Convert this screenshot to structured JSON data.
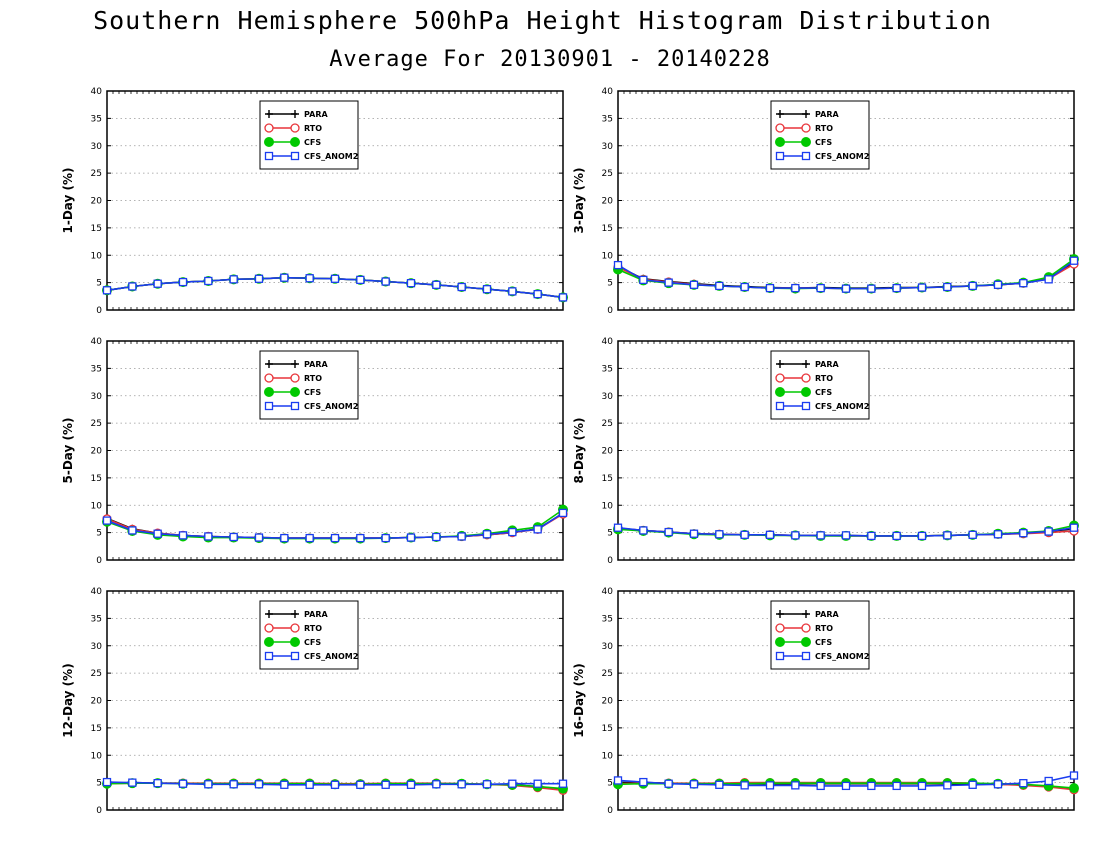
{
  "header": {
    "title": "Southern Hemisphere 500hPa Height Histogram Distribution",
    "subtitle": "Average For 20130901 - 20140228"
  },
  "chart_data": {
    "type": "line",
    "legend_position": "top-left inside each panel",
    "grid": "horizontal dotted lines",
    "series_styles": [
      {
        "name": "PARA",
        "color": "#000000",
        "marker": "plus"
      },
      {
        "name": "RTO",
        "color": "#e8343a",
        "marker": "open-circle"
      },
      {
        "name": "CFS",
        "color": "#00c800",
        "marker": "filled-circle"
      },
      {
        "name": "CFS_ANOM2",
        "color": "#1a3cf0",
        "marker": "open-square"
      }
    ],
    "panels": [
      {
        "ylabel": "1-Day (%)",
        "ylim": [
          0,
          40
        ],
        "yticks": [
          0,
          5,
          10,
          15,
          20,
          25,
          30,
          35,
          40
        ],
        "series": [
          {
            "name": "PARA",
            "values": [
              3.6,
              4.3,
              4.8,
              5.1,
              5.3,
              5.6,
              5.7,
              5.9,
              5.8,
              5.7,
              5.5,
              5.2,
              4.9,
              4.6,
              4.2,
              3.8,
              3.4,
              2.9,
              2.3
            ]
          },
          {
            "name": "RTO",
            "values": [
              3.6,
              4.3,
              4.8,
              5.1,
              5.3,
              5.6,
              5.7,
              5.9,
              5.8,
              5.7,
              5.5,
              5.2,
              4.9,
              4.6,
              4.2,
              3.8,
              3.4,
              2.9,
              2.3
            ]
          },
          {
            "name": "CFS",
            "values": [
              3.6,
              4.3,
              4.8,
              5.1,
              5.3,
              5.6,
              5.7,
              5.9,
              5.8,
              5.7,
              5.5,
              5.2,
              4.9,
              4.6,
              4.2,
              3.8,
              3.4,
              2.9,
              2.3
            ]
          },
          {
            "name": "CFS_ANOM2",
            "values": [
              3.6,
              4.3,
              4.8,
              5.1,
              5.3,
              5.6,
              5.7,
              5.9,
              5.8,
              5.7,
              5.5,
              5.2,
              4.9,
              4.6,
              4.2,
              3.8,
              3.4,
              2.9,
              2.3
            ]
          }
        ]
      },
      {
        "ylabel": "3-Day (%)",
        "ylim": [
          0,
          40
        ],
        "yticks": [
          0,
          5,
          10,
          15,
          20,
          25,
          30,
          35,
          40
        ],
        "series": [
          {
            "name": "PARA",
            "values": [
              7.9,
              5.7,
              5.2,
              4.8,
              4.5,
              4.3,
              4.1,
              4.0,
              4.1,
              4.0,
              4.0,
              4.1,
              4.1,
              4.3,
              4.4,
              4.6,
              4.9,
              5.8,
              8.6
            ]
          },
          {
            "name": "RTO",
            "values": [
              7.8,
              5.6,
              5.1,
              4.7,
              4.4,
              4.2,
              4.0,
              4.0,
              4.0,
              3.9,
              3.9,
              4.0,
              4.1,
              4.2,
              4.4,
              4.6,
              4.9,
              5.7,
              8.4
            ]
          },
          {
            "name": "CFS",
            "values": [
              7.4,
              5.4,
              4.9,
              4.6,
              4.4,
              4.2,
              4.0,
              3.9,
              4.0,
              3.9,
              3.9,
              4.0,
              4.1,
              4.2,
              4.4,
              4.7,
              5.0,
              6.0,
              9.3
            ]
          },
          {
            "name": "CFS_ANOM2",
            "values": [
              8.2,
              5.5,
              5.0,
              4.6,
              4.4,
              4.2,
              4.0,
              4.0,
              4.0,
              3.9,
              3.9,
              4.0,
              4.1,
              4.2,
              4.4,
              4.6,
              4.9,
              5.6,
              9.0
            ]
          }
        ]
      },
      {
        "ylabel": "5-Day (%)",
        "ylim": [
          0,
          40
        ],
        "yticks": [
          0,
          5,
          10,
          15,
          20,
          25,
          30,
          35,
          40
        ],
        "series": [
          {
            "name": "PARA",
            "values": [
              7.6,
              5.7,
              4.9,
              4.5,
              4.3,
              4.2,
              4.1,
              4.0,
              4.0,
              4.0,
              4.0,
              4.0,
              4.1,
              4.2,
              4.3,
              4.6,
              5.0,
              5.7,
              8.5
            ]
          },
          {
            "name": "RTO",
            "values": [
              7.5,
              5.6,
              4.9,
              4.5,
              4.3,
              4.2,
              4.1,
              4.0,
              4.0,
              4.0,
              4.0,
              4.0,
              4.1,
              4.2,
              4.3,
              4.6,
              5.0,
              5.6,
              8.4
            ]
          },
          {
            "name": "CFS",
            "values": [
              7.0,
              5.3,
              4.6,
              4.3,
              4.1,
              4.1,
              4.0,
              3.9,
              3.9,
              3.9,
              3.9,
              4.0,
              4.1,
              4.2,
              4.4,
              4.8,
              5.4,
              6.0,
              9.2
            ]
          },
          {
            "name": "CFS_ANOM2",
            "values": [
              7.2,
              5.4,
              4.8,
              4.5,
              4.3,
              4.2,
              4.1,
              4.0,
              4.0,
              4.0,
              4.0,
              4.0,
              4.1,
              4.2,
              4.3,
              4.7,
              5.1,
              5.6,
              8.6
            ]
          }
        ]
      },
      {
        "ylabel": "8-Day (%)",
        "ylim": [
          0,
          40
        ],
        "yticks": [
          0,
          5,
          10,
          15,
          20,
          25,
          30,
          35,
          40
        ],
        "series": [
          {
            "name": "PARA",
            "values": [
              5.8,
              5.4,
              5.1,
              4.8,
              4.7,
              4.6,
              4.6,
              4.5,
              4.5,
              4.5,
              4.4,
              4.4,
              4.4,
              4.5,
              4.6,
              4.7,
              4.9,
              5.2,
              5.7
            ]
          },
          {
            "name": "RTO",
            "values": [
              5.8,
              5.4,
              5.1,
              4.8,
              4.7,
              4.6,
              4.6,
              4.5,
              4.5,
              4.4,
              4.4,
              4.4,
              4.4,
              4.5,
              4.6,
              4.7,
              4.8,
              5.0,
              5.3
            ]
          },
          {
            "name": "CFS",
            "values": [
              5.6,
              5.3,
              5.0,
              4.7,
              4.6,
              4.6,
              4.5,
              4.5,
              4.4,
              4.4,
              4.4,
              4.4,
              4.4,
              4.5,
              4.6,
              4.8,
              5.0,
              5.3,
              6.3
            ]
          },
          {
            "name": "CFS_ANOM2",
            "values": [
              5.9,
              5.4,
              5.1,
              4.8,
              4.7,
              4.6,
              4.6,
              4.5,
              4.5,
              4.5,
              4.4,
              4.4,
              4.4,
              4.5,
              4.6,
              4.7,
              4.9,
              5.2,
              5.9
            ]
          }
        ]
      },
      {
        "ylabel": "12-Day (%)",
        "ylim": [
          0,
          40
        ],
        "yticks": [
          0,
          5,
          10,
          15,
          20,
          25,
          30,
          35,
          40
        ],
        "series": [
          {
            "name": "PARA",
            "values": [
              4.9,
              5.0,
              4.9,
              4.9,
              4.8,
              4.8,
              4.8,
              4.8,
              4.8,
              4.7,
              4.7,
              4.8,
              4.8,
              4.8,
              4.8,
              4.7,
              4.6,
              4.3,
              3.8
            ]
          },
          {
            "name": "RTO",
            "values": [
              4.8,
              4.9,
              4.9,
              4.9,
              4.9,
              4.9,
              4.9,
              4.9,
              4.9,
              4.8,
              4.8,
              4.9,
              4.9,
              4.9,
              4.8,
              4.7,
              4.5,
              4.1,
              3.6
            ]
          },
          {
            "name": "CFS",
            "values": [
              4.8,
              4.9,
              4.9,
              4.8,
              4.8,
              4.8,
              4.8,
              4.8,
              4.8,
              4.7,
              4.7,
              4.8,
              4.8,
              4.8,
              4.8,
              4.7,
              4.6,
              4.3,
              3.9
            ]
          },
          {
            "name": "CFS_ANOM2",
            "values": [
              5.1,
              5.0,
              4.9,
              4.8,
              4.7,
              4.7,
              4.7,
              4.6,
              4.6,
              4.6,
              4.6,
              4.6,
              4.6,
              4.7,
              4.7,
              4.7,
              4.8,
              4.8,
              4.8
            ]
          }
        ]
      },
      {
        "ylabel": "16-Day (%)",
        "ylim": [
          0,
          40
        ],
        "yticks": [
          0,
          5,
          10,
          15,
          20,
          25,
          30,
          35,
          40
        ],
        "series": [
          {
            "name": "PARA",
            "values": [
              5.0,
              5.0,
              4.9,
              4.8,
              4.8,
              4.8,
              4.8,
              4.8,
              4.8,
              4.8,
              4.8,
              4.8,
              4.8,
              4.8,
              4.8,
              4.7,
              4.6,
              4.3,
              3.9
            ]
          },
          {
            "name": "RTO",
            "values": [
              4.8,
              4.9,
              4.9,
              4.9,
              4.9,
              5.0,
              5.0,
              5.0,
              5.0,
              5.0,
              5.0,
              5.0,
              5.0,
              5.0,
              4.9,
              4.7,
              4.5,
              4.2,
              3.7
            ]
          },
          {
            "name": "CFS",
            "values": [
              4.7,
              4.8,
              4.8,
              4.8,
              4.8,
              4.8,
              4.9,
              4.9,
              4.9,
              4.9,
              4.9,
              4.9,
              4.9,
              4.9,
              4.9,
              4.8,
              4.7,
              4.4,
              4.0
            ]
          },
          {
            "name": "CFS_ANOM2",
            "values": [
              5.4,
              5.1,
              4.8,
              4.7,
              4.6,
              4.5,
              4.5,
              4.5,
              4.4,
              4.4,
              4.4,
              4.4,
              4.4,
              4.5,
              4.6,
              4.7,
              4.9,
              5.3,
              6.3
            ]
          }
        ]
      }
    ]
  }
}
